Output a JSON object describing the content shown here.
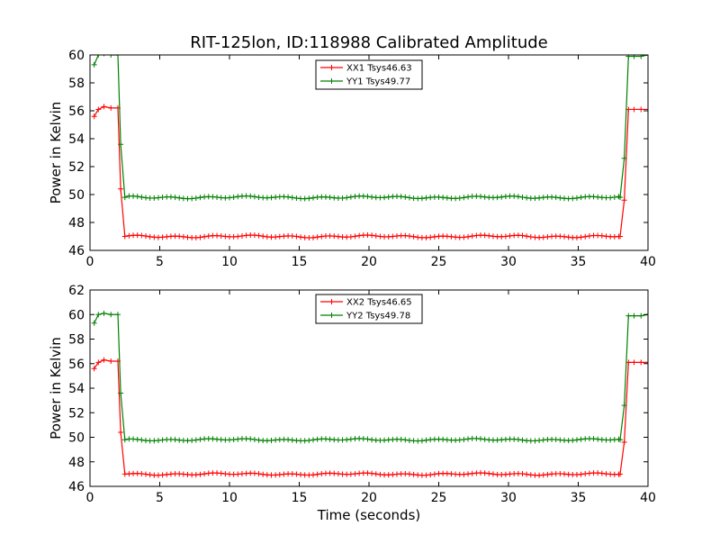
{
  "figure": {
    "title": "RIT-125lon, ID:118988 Calibrated Amplitude",
    "xlabel": "Time (seconds)"
  },
  "colors": {
    "series1": "#ff0000",
    "series2": "#008000"
  },
  "chart_data": [
    {
      "type": "line",
      "ylabel": "Power in Kelvin",
      "xlim": [
        0,
        40
      ],
      "ylim": [
        46,
        60
      ],
      "xticks": [
        0,
        5,
        10,
        15,
        20,
        25,
        30,
        35,
        40
      ],
      "yticks": [
        46,
        48,
        50,
        52,
        54,
        56,
        58,
        60
      ],
      "legend_position": "top-center",
      "series": [
        {
          "name": "XX1 Tsys46.63",
          "color": "#ff0000",
          "x": [
            0.3,
            0.6,
            1.0,
            1.5,
            2.0,
            2.2,
            2.5,
            38.0,
            38.3,
            38.6,
            39.0,
            39.5,
            40.0
          ],
          "y": [
            55.6,
            56.1,
            56.3,
            56.2,
            56.2,
            50.4,
            47.0,
            47.0,
            49.6,
            56.1,
            56.1,
            56.1,
            56.1
          ]
        },
        {
          "name": "YY1 Tsys49.77",
          "color": "#008000",
          "x": [
            0.3,
            0.6,
            1.0,
            1.5,
            2.0,
            2.2,
            2.5,
            38.0,
            38.3,
            38.6,
            39.0,
            39.5,
            40.0
          ],
          "y": [
            59.3,
            60.0,
            60.1,
            60.0,
            60.0,
            53.6,
            49.8,
            49.8,
            52.6,
            59.9,
            59.9,
            59.9,
            60.0
          ]
        }
      ]
    },
    {
      "type": "line",
      "ylabel": "Power in Kelvin",
      "xlim": [
        0,
        40
      ],
      "ylim": [
        46,
        62
      ],
      "xticks": [
        0,
        5,
        10,
        15,
        20,
        25,
        30,
        35,
        40
      ],
      "yticks": [
        46,
        48,
        50,
        52,
        54,
        56,
        58,
        60,
        62
      ],
      "legend_position": "top-center",
      "series": [
        {
          "name": "XX2 Tsys46.65",
          "color": "#ff0000",
          "x": [
            0.3,
            0.6,
            1.0,
            1.5,
            2.0,
            2.2,
            2.5,
            38.0,
            38.3,
            38.6,
            39.0,
            39.5,
            40.0
          ],
          "y": [
            55.6,
            56.1,
            56.3,
            56.2,
            56.2,
            50.4,
            47.0,
            47.0,
            49.6,
            56.1,
            56.1,
            56.1,
            56.1
          ]
        },
        {
          "name": "YY2 Tsys49.78",
          "color": "#008000",
          "x": [
            0.3,
            0.6,
            1.0,
            1.5,
            2.0,
            2.2,
            2.5,
            38.0,
            38.3,
            38.6,
            39.0,
            39.5,
            40.0
          ],
          "y": [
            59.3,
            60.0,
            60.1,
            60.0,
            60.0,
            53.6,
            49.8,
            49.8,
            52.6,
            59.9,
            59.9,
            59.9,
            60.0
          ]
        }
      ]
    }
  ]
}
